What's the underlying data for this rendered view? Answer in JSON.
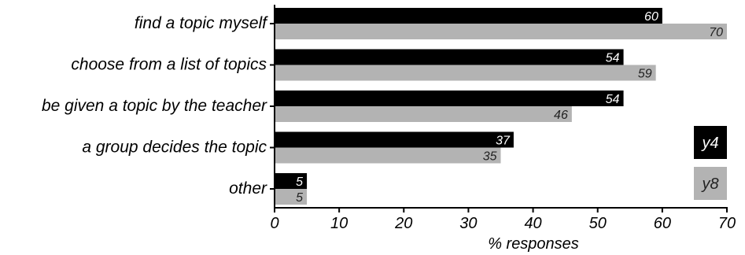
{
  "chart_data": {
    "type": "bar",
    "orientation": "horizontal",
    "categories": [
      "find a topic myself",
      "choose from a list of topics",
      "be given a topic by the teacher",
      "a group decides the topic",
      "other"
    ],
    "series": [
      {
        "name": "y4",
        "values": [
          60,
          54,
          54,
          37,
          5
        ],
        "color": "#000000",
        "label_color": "#ffffff"
      },
      {
        "name": "y8",
        "values": [
          70,
          59,
          46,
          35,
          5
        ],
        "color": "#b3b3b3",
        "label_color": "#222222"
      }
    ],
    "title": "",
    "xlabel": "% responses",
    "ylabel": "",
    "xlim": [
      0,
      70
    ],
    "xticks": [
      "0",
      "10",
      "20",
      "30",
      "40",
      "50",
      "60",
      "70"
    ],
    "grid": false,
    "legend": "right"
  }
}
